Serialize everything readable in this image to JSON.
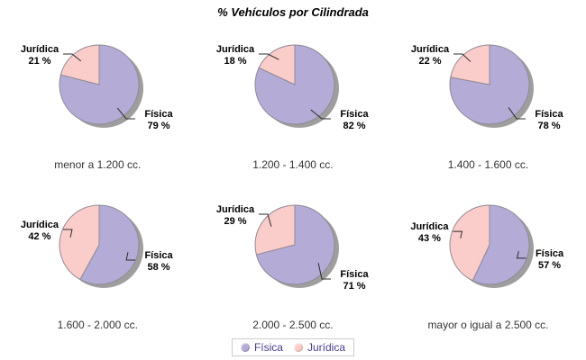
{
  "header": {
    "title": "% Vehículos por Cilindrada"
  },
  "chart_data": [
    {
      "type": "pie",
      "title": "menor a 1.200 cc.",
      "slices": [
        {
          "label": "Física",
          "value": 79
        },
        {
          "label": "Jurídica",
          "value": 21
        }
      ],
      "value_suffix": " %"
    },
    {
      "type": "pie",
      "title": "1.200 - 1.400 cc.",
      "slices": [
        {
          "label": "Física",
          "value": 82
        },
        {
          "label": "Jurídica",
          "value": 18
        }
      ],
      "value_suffix": " %"
    },
    {
      "type": "pie",
      "title": "1.400 - 1.600 cc.",
      "slices": [
        {
          "label": "Física",
          "value": 78
        },
        {
          "label": "Jurídica",
          "value": 22
        }
      ],
      "value_suffix": " %"
    },
    {
      "type": "pie",
      "title": "1.600 - 2.000 cc.",
      "slices": [
        {
          "label": "Física",
          "value": 58
        },
        {
          "label": "Jurídica",
          "value": 42
        }
      ],
      "value_suffix": " %"
    },
    {
      "type": "pie",
      "title": "2.000 - 2.500 cc.",
      "slices": [
        {
          "label": "Física",
          "value": 71
        },
        {
          "label": "Jurídica",
          "value": 29
        }
      ],
      "value_suffix": " %"
    },
    {
      "type": "pie",
      "title": "mayor o igual a 2.500 cc.",
      "slices": [
        {
          "label": "Física",
          "value": 57
        },
        {
          "label": "Jurídica",
          "value": 43
        }
      ],
      "value_suffix": " %"
    }
  ],
  "legend": {
    "position": "bottom",
    "items": [
      {
        "label": "Física",
        "color": "#b4abd6"
      },
      {
        "label": "Jurídica",
        "color": "#fbcdca"
      }
    ]
  },
  "colors": {
    "fisica": "#b4abd6",
    "juridica": "#fbcdca",
    "shadow": "#9e9e9e",
    "outline": "#8f8a95",
    "leader_line": "#2b2b2b",
    "label_text": "#000000",
    "caption_text": "#333333",
    "title_text": "#000000",
    "legend_text": "#4a3c8c",
    "legend_border": "#cccccc",
    "background": "#ffffff"
  }
}
